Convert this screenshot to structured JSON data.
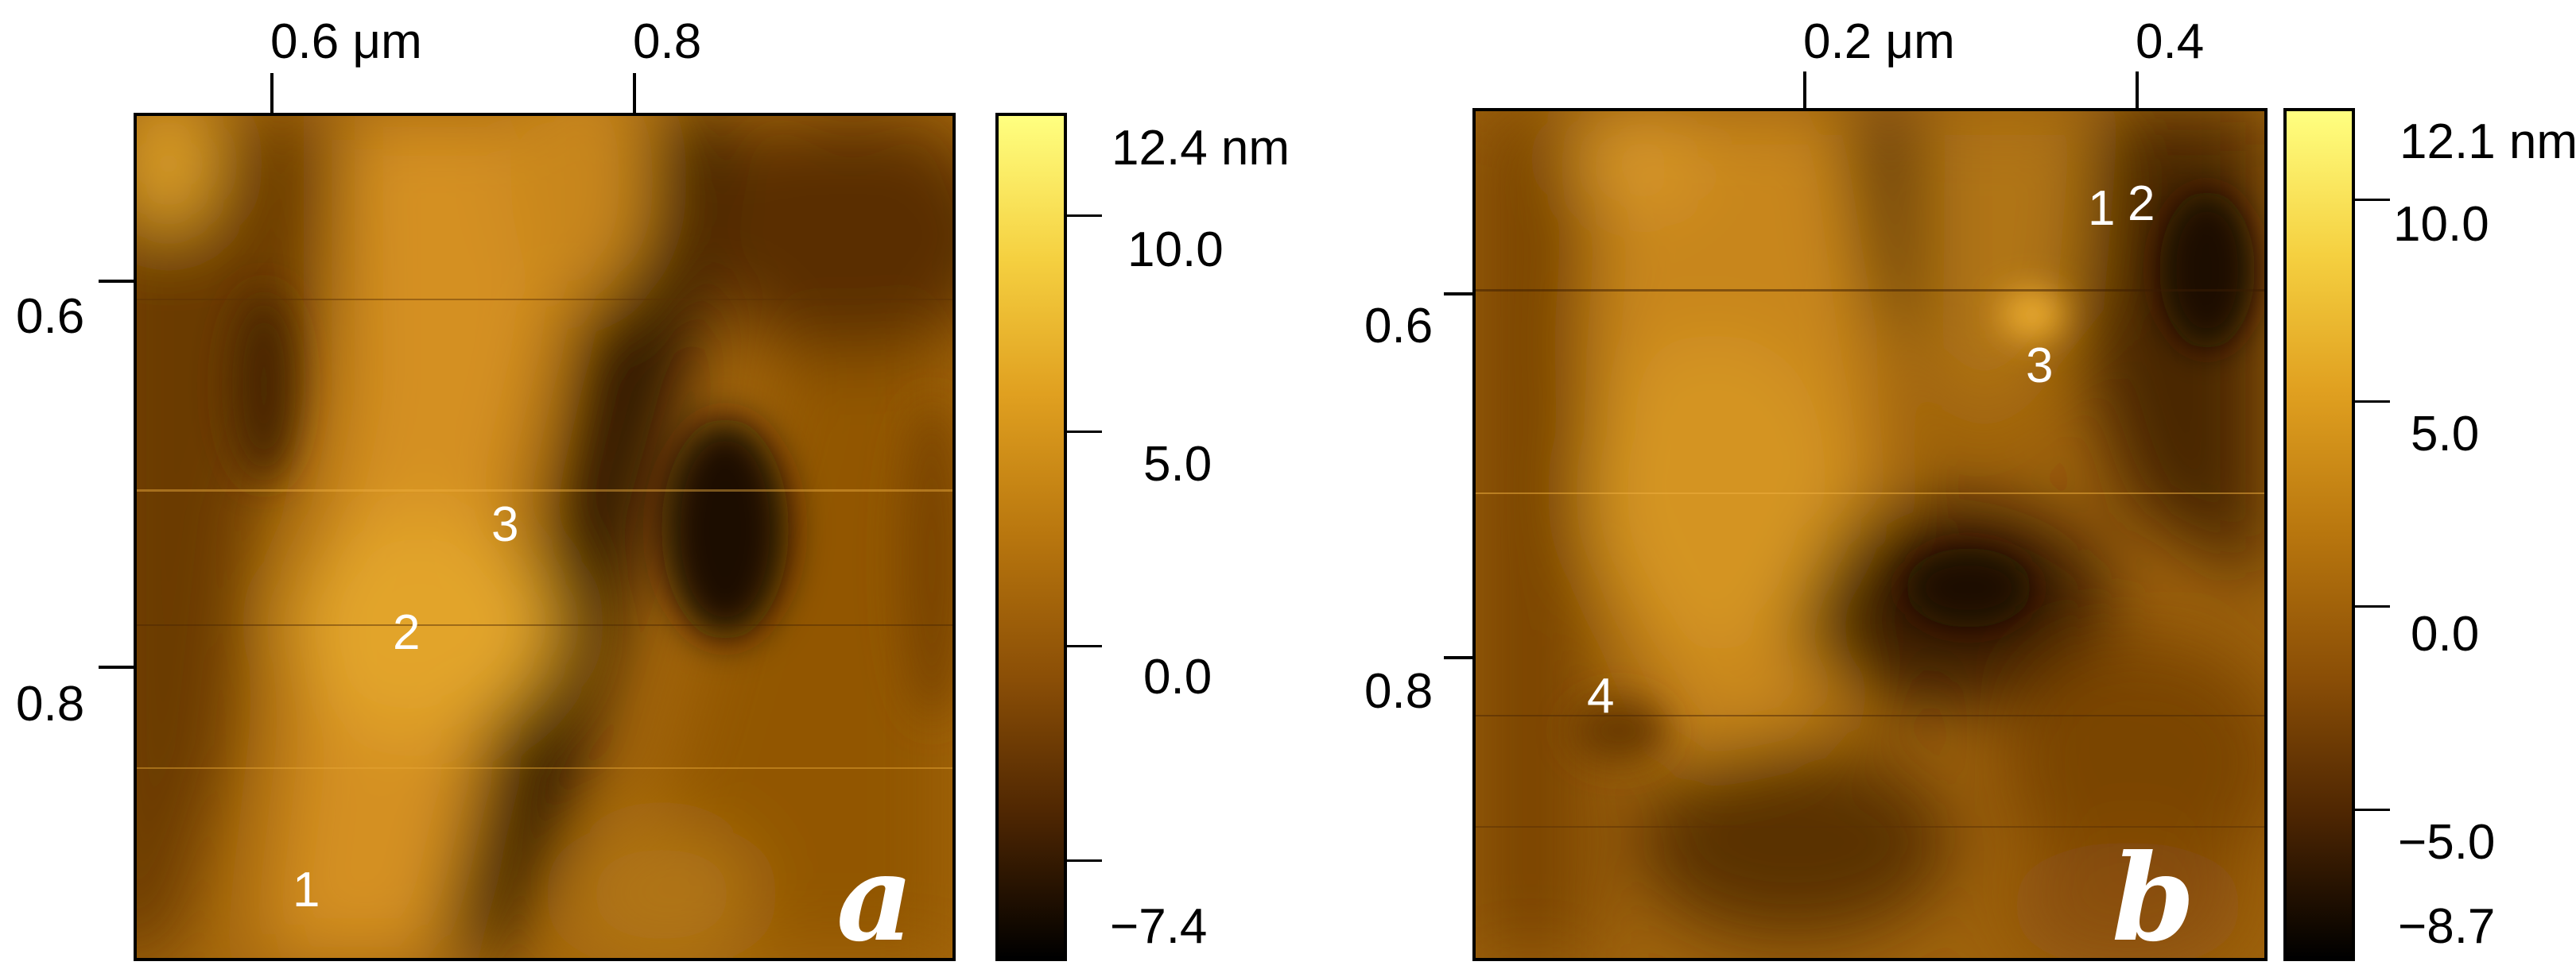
{
  "panels": [
    {
      "letter": "a",
      "top_ticks": [
        "0.6 μm",
        "0.8"
      ],
      "left_ticks": [
        "0.6",
        "0.8"
      ],
      "colorbar": {
        "max_label": "12.4 nm",
        "ticks": [
          "10.0",
          "5.0",
          "0.0"
        ],
        "min_label": "−7.4"
      },
      "points": [
        "1",
        "2",
        "3"
      ]
    },
    {
      "letter": "b",
      "top_ticks": [
        "0.2 μm",
        "0.4"
      ],
      "left_ticks": [
        "0.6",
        "0.8"
      ],
      "colorbar": {
        "max_label": "12.1 nm",
        "ticks": [
          "10.0",
          "5.0",
          "0.0",
          "−5.0"
        ],
        "min_label": "−8.7"
      },
      "points": [
        "1",
        "2",
        "3",
        "4"
      ]
    }
  ],
  "colormap": [
    "#000000",
    "#4e2602",
    "#8a4e06",
    "#b8760e",
    "#e0a020",
    "#f5d040",
    "#ffff80"
  ]
}
